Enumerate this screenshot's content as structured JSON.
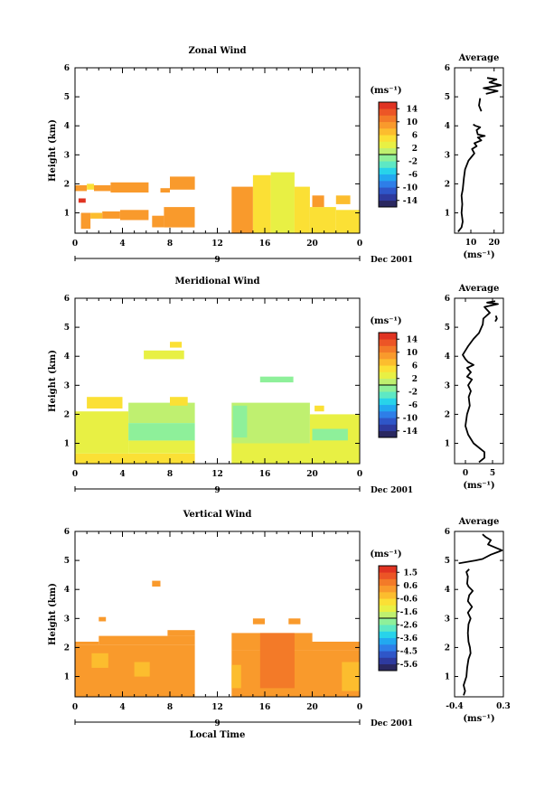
{
  "chart_data": [
    {
      "type": "heatmap",
      "title": "Zonal Wind",
      "ylabel": "Height (km)",
      "xlim": [
        0,
        24
      ],
      "ylim": [
        0.3,
        6
      ],
      "x_ticks": [
        "0",
        "4",
        "8",
        "12",
        "16",
        "20",
        "0"
      ],
      "y_ticks": [
        "1",
        "2",
        "3",
        "4",
        "5",
        "6"
      ],
      "date_axis": {
        "day": "9",
        "month": "Dec 2001"
      },
      "colorbar": {
        "unit": "(ms⁻¹)",
        "ticks": [
          "14",
          "10",
          "6",
          "2",
          "-2",
          "-6",
          "-10",
          "-14"
        ],
        "range": [
          -16,
          16
        ]
      },
      "regions": [
        {
          "x": [
            0.0,
            1.0
          ],
          "y": [
            1.75,
            1.95
          ],
          "value": 8
        },
        {
          "x": [
            1.0,
            1.6
          ],
          "y": [
            1.8,
            2.0
          ],
          "value": 5
        },
        {
          "x": [
            1.6,
            3.0
          ],
          "y": [
            1.75,
            1.95
          ],
          "value": 9
        },
        {
          "x": [
            3.0,
            6.2
          ],
          "y": [
            1.7,
            2.05
          ],
          "value": 9
        },
        {
          "x": [
            7.2,
            8.0
          ],
          "y": [
            1.7,
            1.85
          ],
          "value": 9
        },
        {
          "x": [
            8.0,
            10.1
          ],
          "y": [
            1.8,
            2.25
          ],
          "value": 8
        },
        {
          "x": [
            0.3,
            0.9
          ],
          "y": [
            1.35,
            1.5
          ],
          "value": 14
        },
        {
          "x": [
            0.5,
            1.3
          ],
          "y": [
            0.45,
            1.0
          ],
          "value": 8
        },
        {
          "x": [
            1.3,
            2.3
          ],
          "y": [
            0.8,
            1.0
          ],
          "value": 6
        },
        {
          "x": [
            2.3,
            3.8
          ],
          "y": [
            0.8,
            1.05
          ],
          "value": 9
        },
        {
          "x": [
            3.8,
            6.2
          ],
          "y": [
            0.75,
            1.1
          ],
          "value": 8
        },
        {
          "x": [
            6.5,
            7.5
          ],
          "y": [
            0.5,
            0.9
          ],
          "value": 8
        },
        {
          "x": [
            7.5,
            10.1
          ],
          "y": [
            0.5,
            1.2
          ],
          "value": 8
        },
        {
          "x": [
            13.2,
            15.0
          ],
          "y": [
            0.3,
            1.9
          ],
          "value": 8
        },
        {
          "x": [
            15.0,
            16.5
          ],
          "y": [
            0.3,
            2.3
          ],
          "value": 5
        },
        {
          "x": [
            16.5,
            18.5
          ],
          "y": [
            0.3,
            2.4
          ],
          "value": 3
        },
        {
          "x": [
            18.5,
            19.8
          ],
          "y": [
            0.3,
            1.9
          ],
          "value": 4
        },
        {
          "x": [
            19.8,
            22.0
          ],
          "y": [
            0.3,
            1.2
          ],
          "value": 5
        },
        {
          "x": [
            20.0,
            21.0
          ],
          "y": [
            1.2,
            1.6
          ],
          "value": 8
        },
        {
          "x": [
            22.0,
            24.0
          ],
          "y": [
            0.3,
            1.1
          ],
          "value": 5
        },
        {
          "x": [
            22.0,
            23.2
          ],
          "y": [
            1.3,
            1.6
          ],
          "value": 7
        }
      ]
    },
    {
      "type": "heatmap",
      "title": "Meridional Wind",
      "ylabel": "Height (km)",
      "xlim": [
        0,
        24
      ],
      "ylim": [
        0.3,
        6
      ],
      "x_ticks": [
        "0",
        "4",
        "8",
        "12",
        "16",
        "20",
        "0"
      ],
      "y_ticks": [
        "1",
        "2",
        "3",
        "4",
        "5",
        "6"
      ],
      "date_axis": {
        "day": "9",
        "month": "Dec 2001"
      },
      "colorbar": {
        "unit": "(ms⁻¹)",
        "ticks": [
          "14",
          "10",
          "6",
          "2",
          "-2",
          "-6",
          "-10",
          "-14"
        ],
        "range": [
          -16,
          16
        ]
      },
      "regions": [
        {
          "x": [
            0.0,
            10.1
          ],
          "y": [
            0.3,
            0.65
          ],
          "value": 4
        },
        {
          "x": [
            0.0,
            4.5
          ],
          "y": [
            0.65,
            2.1
          ],
          "value": 2
        },
        {
          "x": [
            1.0,
            4.0
          ],
          "y": [
            2.2,
            2.6
          ],
          "value": 4
        },
        {
          "x": [
            4.5,
            10.1
          ],
          "y": [
            1.7,
            2.4
          ],
          "value": 1
        },
        {
          "x": [
            4.5,
            10.1
          ],
          "y": [
            0.65,
            1.1
          ],
          "value": 2
        },
        {
          "x": [
            4.5,
            10.1
          ],
          "y": [
            1.1,
            1.7
          ],
          "value": -2
        },
        {
          "x": [
            8.0,
            9.5
          ],
          "y": [
            2.3,
            2.6
          ],
          "value": 4
        },
        {
          "x": [
            5.8,
            9.2
          ],
          "y": [
            3.9,
            4.2
          ],
          "value": 3
        },
        {
          "x": [
            8.0,
            9.0
          ],
          "y": [
            4.3,
            4.5
          ],
          "value": 4
        },
        {
          "x": [
            13.2,
            24.0
          ],
          "y": [
            0.3,
            1.0
          ],
          "value": 2
        },
        {
          "x": [
            13.2,
            19.8
          ],
          "y": [
            1.0,
            2.4
          ],
          "value": 1
        },
        {
          "x": [
            13.3,
            14.5
          ],
          "y": [
            1.2,
            2.3
          ],
          "value": -2
        },
        {
          "x": [
            19.8,
            24.0
          ],
          "y": [
            1.0,
            2.0
          ],
          "value": 2
        },
        {
          "x": [
            20.0,
            23.0
          ],
          "y": [
            1.1,
            1.5
          ],
          "value": -2
        },
        {
          "x": [
            15.6,
            18.4
          ],
          "y": [
            3.1,
            3.3
          ],
          "value": -1
        },
        {
          "x": [
            20.2,
            21.0
          ],
          "y": [
            2.1,
            2.3
          ],
          "value": 4
        }
      ]
    },
    {
      "type": "heatmap",
      "title": "Vertical Wind",
      "ylabel": "Height (km)",
      "xlabel": "Local Time",
      "xlim": [
        0,
        24
      ],
      "ylim": [
        0.3,
        6
      ],
      "x_ticks": [
        "0",
        "4",
        "8",
        "12",
        "16",
        "20",
        "0"
      ],
      "y_ticks": [
        "1",
        "2",
        "3",
        "4",
        "5",
        "6"
      ],
      "date_axis": {
        "day": "9",
        "month": "Dec 2001"
      },
      "colorbar": {
        "unit": "(ms⁻¹)",
        "ticks": [
          "1.5",
          "0.6",
          "-0.6",
          "-1.6",
          "-2.6",
          "-3.6",
          "-4.5",
          "-5.6"
        ],
        "range": [
          -6,
          2
        ]
      },
      "regions": [
        {
          "x": [
            0.0,
            10.1
          ],
          "y": [
            0.3,
            2.1
          ],
          "value": 0.3
        },
        {
          "x": [
            0.0,
            2.0
          ],
          "y": [
            2.1,
            2.2
          ],
          "value": 0.3
        },
        {
          "x": [
            2.0,
            10.1
          ],
          "y": [
            2.1,
            2.4
          ],
          "value": 0.3
        },
        {
          "x": [
            7.8,
            10.1
          ],
          "y": [
            2.4,
            2.6
          ],
          "value": 0.3
        },
        {
          "x": [
            1.4,
            2.8
          ],
          "y": [
            1.3,
            1.8
          ],
          "value": -0.5
        },
        {
          "x": [
            5.0,
            6.3
          ],
          "y": [
            1.0,
            1.5
          ],
          "value": -0.4
        },
        {
          "x": [
            2.0,
            2.6
          ],
          "y": [
            2.9,
            3.05
          ],
          "value": 0.3
        },
        {
          "x": [
            6.5,
            7.2
          ],
          "y": [
            4.1,
            4.3
          ],
          "value": 0.3
        },
        {
          "x": [
            13.2,
            24.0
          ],
          "y": [
            0.3,
            1.9
          ],
          "value": 0.3
        },
        {
          "x": [
            13.2,
            20.0
          ],
          "y": [
            1.9,
            2.5
          ],
          "value": 0.3
        },
        {
          "x": [
            15.6,
            18.5
          ],
          "y": [
            0.6,
            2.5
          ],
          "value": 0.8
        },
        {
          "x": [
            20.0,
            24.0
          ],
          "y": [
            1.9,
            2.2
          ],
          "value": 0.3
        },
        {
          "x": [
            22.5,
            24.0
          ],
          "y": [
            0.5,
            1.5
          ],
          "value": -0.5
        },
        {
          "x": [
            13.2,
            14.0
          ],
          "y": [
            0.6,
            1.4
          ],
          "value": -0.5
        },
        {
          "x": [
            15.0,
            16.0
          ],
          "y": [
            2.8,
            3.0
          ],
          "value": 0.3
        },
        {
          "x": [
            18.0,
            19.0
          ],
          "y": [
            2.8,
            3.0
          ],
          "value": 0.3
        }
      ]
    }
  ],
  "profiles": [
    {
      "type": "line",
      "title": "Average",
      "xlabel": "(ms⁻¹)",
      "xlim": [
        3,
        24
      ],
      "ylim": [
        0.3,
        6
      ],
      "x_ticks": [
        {
          "value": 10,
          "label": "10"
        },
        {
          "value": 20,
          "label": "20"
        }
      ],
      "y_ticks": [
        "1",
        "2",
        "3",
        "4",
        "5",
        "6"
      ],
      "segments": [
        [
          [
            4.5,
            0.35
          ],
          [
            5.0,
            0.4
          ],
          [
            6.0,
            0.5
          ],
          [
            6.5,
            0.7
          ],
          [
            6.0,
            1.0
          ],
          [
            6.3,
            1.3
          ],
          [
            6.0,
            1.6
          ],
          [
            6.5,
            1.8
          ],
          [
            7.0,
            2.2
          ],
          [
            7.5,
            2.5
          ],
          [
            9.0,
            2.8
          ],
          [
            10.0,
            2.9
          ],
          [
            11.5,
            3.05
          ],
          [
            10.5,
            3.2
          ],
          [
            12.5,
            3.3
          ],
          [
            11.5,
            3.4
          ],
          [
            14.5,
            3.5
          ],
          [
            13.0,
            3.6
          ],
          [
            16.0,
            3.65
          ],
          [
            13.0,
            3.7
          ],
          [
            12.5,
            3.85
          ],
          [
            14.0,
            3.95
          ],
          [
            12.0,
            4.0
          ],
          [
            11.0,
            4.05
          ]
        ],
        [
          [
            14.5,
            4.5
          ],
          [
            13.5,
            4.7
          ],
          [
            14.0,
            4.95
          ]
        ],
        [
          [
            16.5,
            5.1
          ],
          [
            21.5,
            5.2
          ],
          [
            15.5,
            5.3
          ],
          [
            23.0,
            5.4
          ],
          [
            18.0,
            5.5
          ],
          [
            21.0,
            5.6
          ],
          [
            17.0,
            5.65
          ]
        ]
      ]
    },
    {
      "type": "line",
      "title": "Average",
      "xlabel": "(ms⁻¹)",
      "xlim": [
        -2,
        7
      ],
      "ylim": [
        0.3,
        6
      ],
      "x_ticks": [
        {
          "value": 0,
          "label": "0"
        },
        {
          "value": 5,
          "label": "5"
        }
      ],
      "y_ticks": [
        "1",
        "2",
        "3",
        "4",
        "5",
        "6"
      ],
      "segments": [
        [
          [
            2.5,
            0.35
          ],
          [
            3.5,
            0.5
          ],
          [
            3.5,
            0.7
          ],
          [
            1.5,
            1.0
          ],
          [
            0.5,
            1.3
          ],
          [
            0.0,
            1.6
          ],
          [
            0.3,
            2.0
          ],
          [
            0.8,
            2.3
          ],
          [
            0.6,
            2.6
          ],
          [
            1.0,
            2.8
          ],
          [
            0.5,
            3.0
          ],
          [
            1.2,
            3.2
          ],
          [
            0.3,
            3.3
          ],
          [
            1.0,
            3.45
          ],
          [
            0.3,
            3.6
          ],
          [
            1.5,
            3.7
          ],
          [
            0.5,
            3.8
          ],
          [
            0.0,
            3.9
          ],
          [
            -0.5,
            4.05
          ],
          [
            0.0,
            4.2
          ],
          [
            0.5,
            4.35
          ],
          [
            1.5,
            4.6
          ],
          [
            2.5,
            4.8
          ],
          [
            3.2,
            5.1
          ],
          [
            3.3,
            5.3
          ],
          [
            4.5,
            5.5
          ],
          [
            3.5,
            5.7
          ],
          [
            6.0,
            5.8
          ],
          [
            4.0,
            5.85
          ],
          [
            5.5,
            5.9
          ]
        ],
        [
          [
            5.5,
            5.2
          ],
          [
            5.8,
            5.3
          ],
          [
            5.6,
            5.4
          ]
        ]
      ]
    },
    {
      "type": "line",
      "title": "Average",
      "xlabel": "(ms⁻¹)",
      "xlim": [
        -0.4,
        0.3
      ],
      "ylim": [
        0.3,
        6
      ],
      "x_ticks": [
        {
          "value": -0.4,
          "label": "-0.4"
        },
        {
          "value": 0.3,
          "label": "0.3"
        }
      ],
      "y_ticks": [
        "1",
        "2",
        "3",
        "4",
        "5",
        "6"
      ],
      "segments": [
        [
          [
            -0.27,
            0.35
          ],
          [
            -0.25,
            0.5
          ],
          [
            -0.27,
            0.7
          ],
          [
            -0.23,
            1.0
          ],
          [
            -0.22,
            1.3
          ],
          [
            -0.2,
            1.6
          ],
          [
            -0.17,
            1.8
          ],
          [
            -0.18,
            2.0
          ],
          [
            -0.2,
            2.2
          ],
          [
            -0.21,
            2.5
          ],
          [
            -0.2,
            2.8
          ],
          [
            -0.17,
            3.0
          ],
          [
            -0.21,
            3.2
          ],
          [
            -0.15,
            3.4
          ],
          [
            -0.21,
            3.6
          ],
          [
            -0.19,
            3.8
          ],
          [
            -0.14,
            3.95
          ],
          [
            -0.2,
            4.1
          ],
          [
            -0.22,
            4.2
          ],
          [
            -0.21,
            4.45
          ],
          [
            -0.23,
            4.6
          ],
          [
            -0.19,
            4.7
          ]
        ],
        [
          [
            -0.34,
            4.9
          ],
          [
            -0.1,
            5.0
          ],
          [
            0.0,
            5.05
          ],
          [
            0.12,
            5.2
          ],
          [
            0.23,
            5.3
          ],
          [
            0.28,
            5.35
          ],
          [
            0.18,
            5.45
          ],
          [
            0.08,
            5.55
          ],
          [
            0.12,
            5.7
          ],
          [
            0.05,
            5.8
          ],
          [
            0.0,
            5.9
          ]
        ]
      ]
    }
  ]
}
